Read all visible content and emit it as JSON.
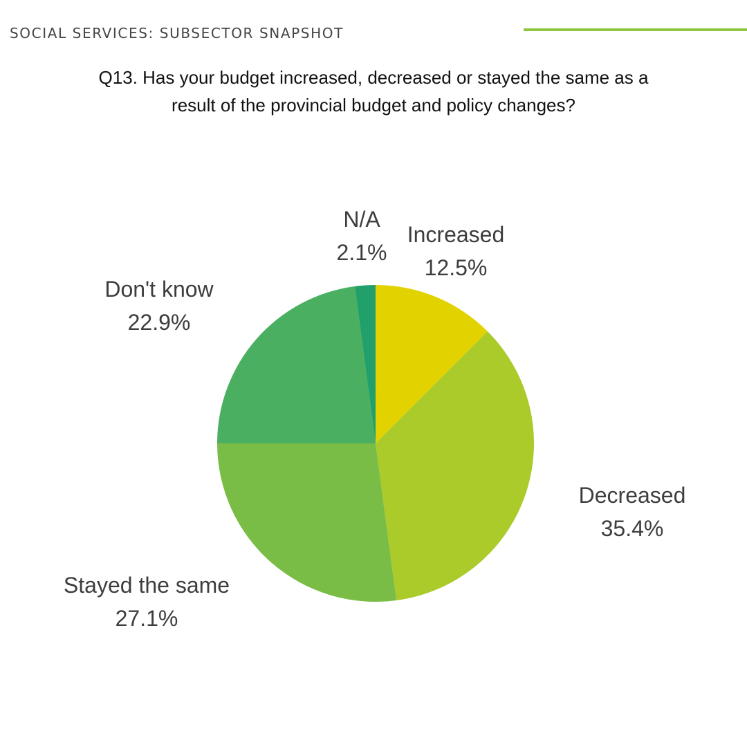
{
  "header": {
    "label": "SOCIAL SERVICES: SUBSECTOR SNAPSHOT",
    "rule_color": "#8dc63f"
  },
  "question": {
    "line1": "Q13. Has your budget increased, decreased or stayed the same as a",
    "line2": "result of the provincial budget and policy changes?"
  },
  "chart_data": {
    "type": "pie",
    "title": "Q13. Has your budget increased, decreased or stayed the same as a result of the provincial budget and policy changes?",
    "start": "12 o'clock, clockwise",
    "slices": [
      {
        "label": "Increased",
        "value": 12.5,
        "value_label": "12.5%",
        "color": "#e2d200"
      },
      {
        "label": "Decreased",
        "value": 35.4,
        "value_label": "35.4%",
        "color": "#aacb2a"
      },
      {
        "label": "Stayed the same",
        "value": 27.1,
        "value_label": "27.1%",
        "color": "#79bd47"
      },
      {
        "label": "Don't know",
        "value": 22.9,
        "value_label": "22.9%",
        "color": "#4aaf60"
      },
      {
        "label": "N/A",
        "value": 2.1,
        "value_label": "2.1%",
        "color": "#22a06b"
      }
    ]
  }
}
